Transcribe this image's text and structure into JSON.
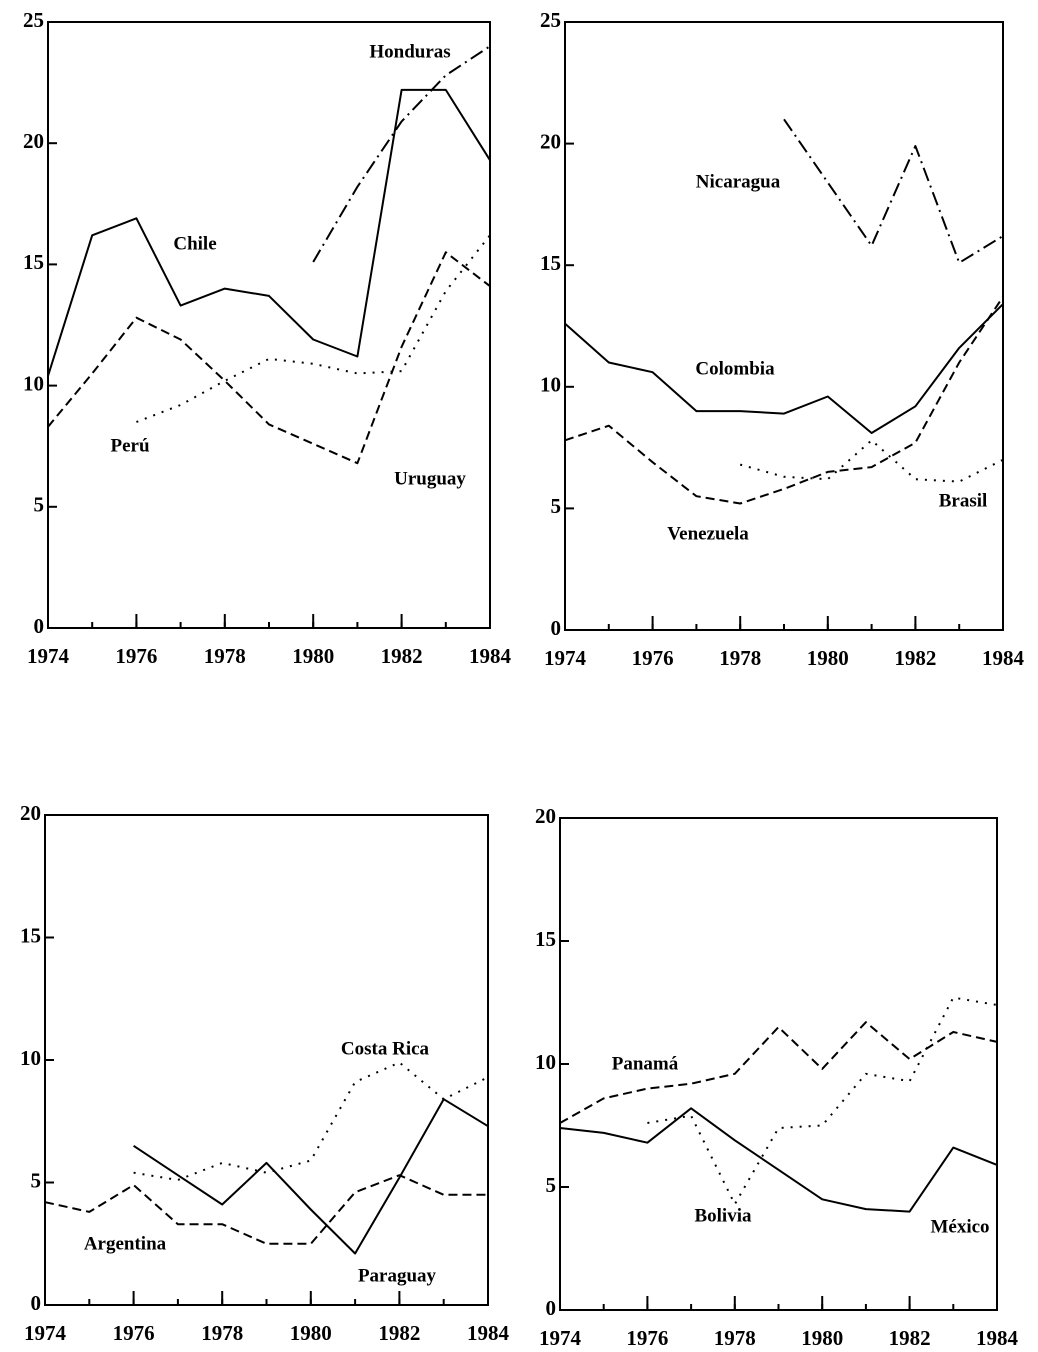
{
  "chart_data": [
    {
      "type": "line",
      "x": [
        1974,
        1975,
        1976,
        1977,
        1978,
        1979,
        1980,
        1981,
        1982,
        1983,
        1984
      ],
      "xlim": [
        1974,
        1984
      ],
      "xticks": [
        1974,
        1976,
        1978,
        1980,
        1982,
        1984
      ],
      "ylim": [
        0,
        25
      ],
      "yticks": [
        0,
        5,
        10,
        15,
        20,
        25
      ],
      "series": [
        {
          "name": "Honduras",
          "color": "#000000",
          "style": "dashdot",
          "values": [
            null,
            null,
            null,
            null,
            null,
            null,
            15.1,
            18.2,
            20.9,
            22.8,
            24.0
          ]
        },
        {
          "name": "Chile",
          "color": "#000000",
          "style": "solid",
          "values": [
            10.4,
            16.2,
            16.9,
            13.3,
            14.0,
            13.7,
            11.9,
            11.2,
            22.2,
            22.2,
            19.3
          ]
        },
        {
          "name": "Perú",
          "color": "#000000",
          "style": "dotted",
          "values": [
            null,
            null,
            8.5,
            9.2,
            10.2,
            11.1,
            10.9,
            10.5,
            10.6,
            13.9,
            16.2
          ]
        },
        {
          "name": "Uruguay",
          "color": "#000000",
          "style": "dashed",
          "values": [
            8.3,
            10.5,
            12.8,
            11.9,
            10.2,
            8.4,
            7.6,
            6.8,
            11.6,
            15.5,
            14.1
          ]
        }
      ]
    },
    {
      "type": "line",
      "x": [
        1974,
        1975,
        1976,
        1977,
        1978,
        1979,
        1980,
        1981,
        1982,
        1983,
        1984
      ],
      "xlim": [
        1974,
        1984
      ],
      "xticks": [
        1974,
        1976,
        1978,
        1980,
        1982,
        1984
      ],
      "ylim": [
        0,
        25
      ],
      "yticks": [
        0,
        5,
        10,
        15,
        20,
        25
      ],
      "series": [
        {
          "name": "Nicaragua",
          "color": "#000000",
          "style": "dashdot",
          "values": [
            null,
            null,
            null,
            null,
            null,
            21.0,
            18.4,
            15.8,
            19.9,
            15.1,
            16.2
          ]
        },
        {
          "name": "Colombia",
          "color": "#000000",
          "style": "solid",
          "values": [
            12.6,
            11.0,
            10.6,
            9.0,
            9.0,
            8.9,
            9.6,
            8.1,
            9.2,
            11.6,
            13.4
          ]
        },
        {
          "name": "Brasil",
          "color": "#000000",
          "style": "dotted",
          "values": [
            null,
            null,
            null,
            null,
            6.8,
            6.3,
            6.2,
            7.8,
            6.2,
            6.1,
            7.0
          ]
        },
        {
          "name": "Venezuela",
          "color": "#000000",
          "style": "dashed",
          "values": [
            7.8,
            8.4,
            6.9,
            5.5,
            5.2,
            5.8,
            6.5,
            6.7,
            7.7,
            11.0,
            13.7
          ]
        }
      ]
    },
    {
      "type": "line",
      "x": [
        1974,
        1975,
        1976,
        1977,
        1978,
        1979,
        1980,
        1981,
        1982,
        1983,
        1984
      ],
      "xlim": [
        1974,
        1984
      ],
      "xticks": [
        1974,
        1976,
        1978,
        1980,
        1982,
        1984
      ],
      "ylim": [
        0,
        20
      ],
      "yticks": [
        0,
        5,
        10,
        15,
        20
      ],
      "series": [
        {
          "name": "Costa Rica",
          "color": "#000000",
          "style": "dotted",
          "values": [
            null,
            null,
            5.4,
            5.1,
            5.8,
            5.4,
            5.9,
            9.1,
            9.9,
            8.4,
            9.3
          ]
        },
        {
          "name": "Argentina",
          "color": "#000000",
          "style": "dashed",
          "values": [
            4.2,
            3.8,
            4.9,
            3.3,
            3.3,
            2.5,
            2.5,
            4.6,
            5.3,
            4.5,
            4.5
          ]
        },
        {
          "name": "Paraguay",
          "color": "#000000",
          "style": "solid",
          "values": [
            null,
            null,
            6.5,
            5.3,
            4.1,
            5.8,
            3.9,
            2.1,
            5.2,
            8.4,
            7.3
          ]
        }
      ]
    },
    {
      "type": "line",
      "x": [
        1974,
        1975,
        1976,
        1977,
        1978,
        1979,
        1980,
        1981,
        1982,
        1983,
        1984
      ],
      "xlim": [
        1974,
        1984
      ],
      "xticks": [
        1974,
        1976,
        1978,
        1980,
        1982,
        1984
      ],
      "ylim": [
        0,
        20
      ],
      "yticks": [
        0,
        5,
        10,
        15,
        20
      ],
      "series": [
        {
          "name": "Panamá",
          "color": "#000000",
          "style": "dashed",
          "values": [
            7.6,
            8.6,
            9.0,
            9.2,
            9.6,
            11.5,
            9.8,
            11.7,
            10.2,
            11.3,
            10.9
          ]
        },
        {
          "name": "Bolivia",
          "color": "#000000",
          "style": "dotted",
          "values": [
            null,
            null,
            7.6,
            7.9,
            4.3,
            7.4,
            7.5,
            9.6,
            9.3,
            12.7,
            12.4
          ]
        },
        {
          "name": "México",
          "color": "#000000",
          "style": "solid",
          "values": [
            7.4,
            7.2,
            6.8,
            8.2,
            6.9,
            5.7,
            4.5,
            4.1,
            4.0,
            6.6,
            5.9
          ]
        }
      ]
    }
  ]
}
